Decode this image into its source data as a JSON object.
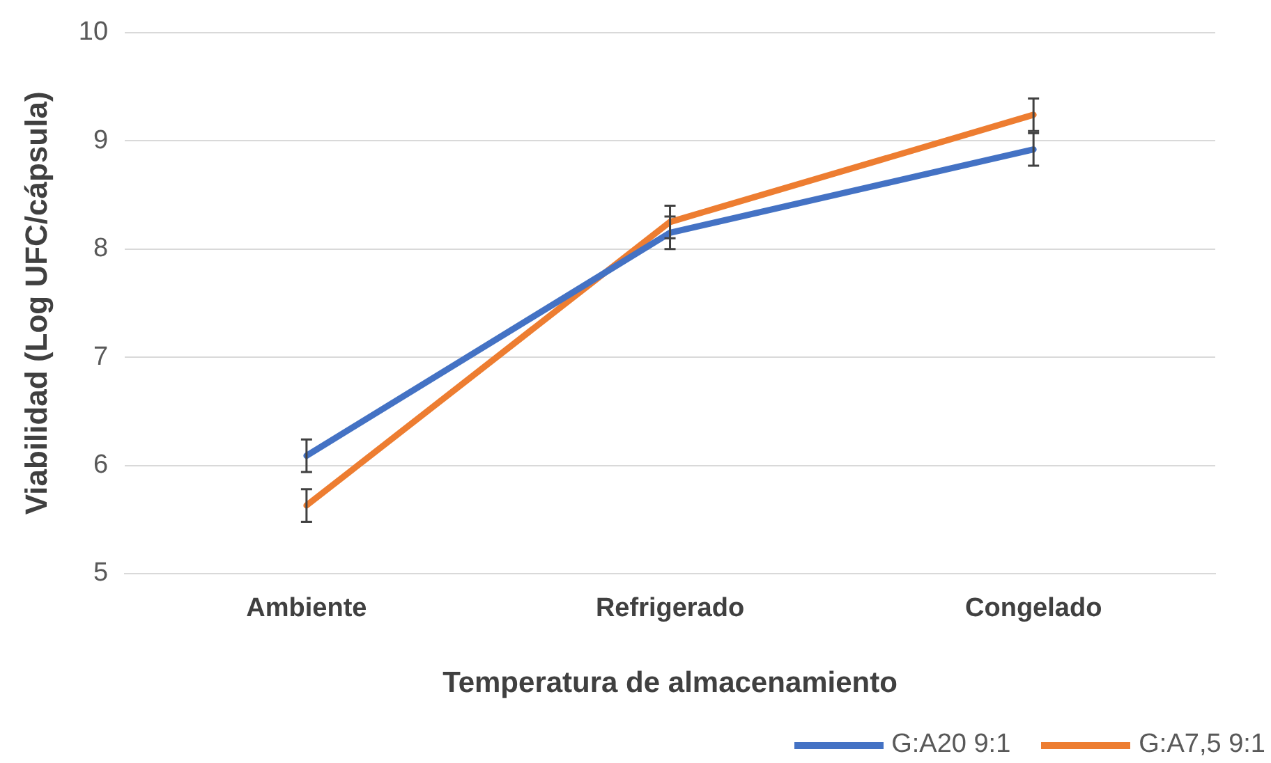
{
  "chart_data": {
    "type": "line",
    "xlabel": "Temperatura de almacenamiento",
    "ylabel": "Viabilidad (Log UFC/cápsula)",
    "categories": [
      "Ambiente",
      "Refrigerado",
      "Congelado"
    ],
    "series": [
      {
        "name": "G:A20 9:1",
        "color": "#4472c4",
        "values": [
          6.09,
          8.15,
          8.92
        ],
        "errors": [
          0.15,
          0.15,
          0.15
        ]
      },
      {
        "name": "G:A7,5 9:1",
        "color": "#ed7d31",
        "values": [
          5.63,
          8.25,
          9.24
        ],
        "errors": [
          0.15,
          0.15,
          0.15
        ]
      }
    ],
    "ylim": [
      5,
      10
    ],
    "yticks": [
      5,
      6,
      7,
      8,
      9,
      10
    ],
    "grid": "y",
    "legend": "bottom right",
    "marker": "none",
    "line_style": "solid"
  }
}
